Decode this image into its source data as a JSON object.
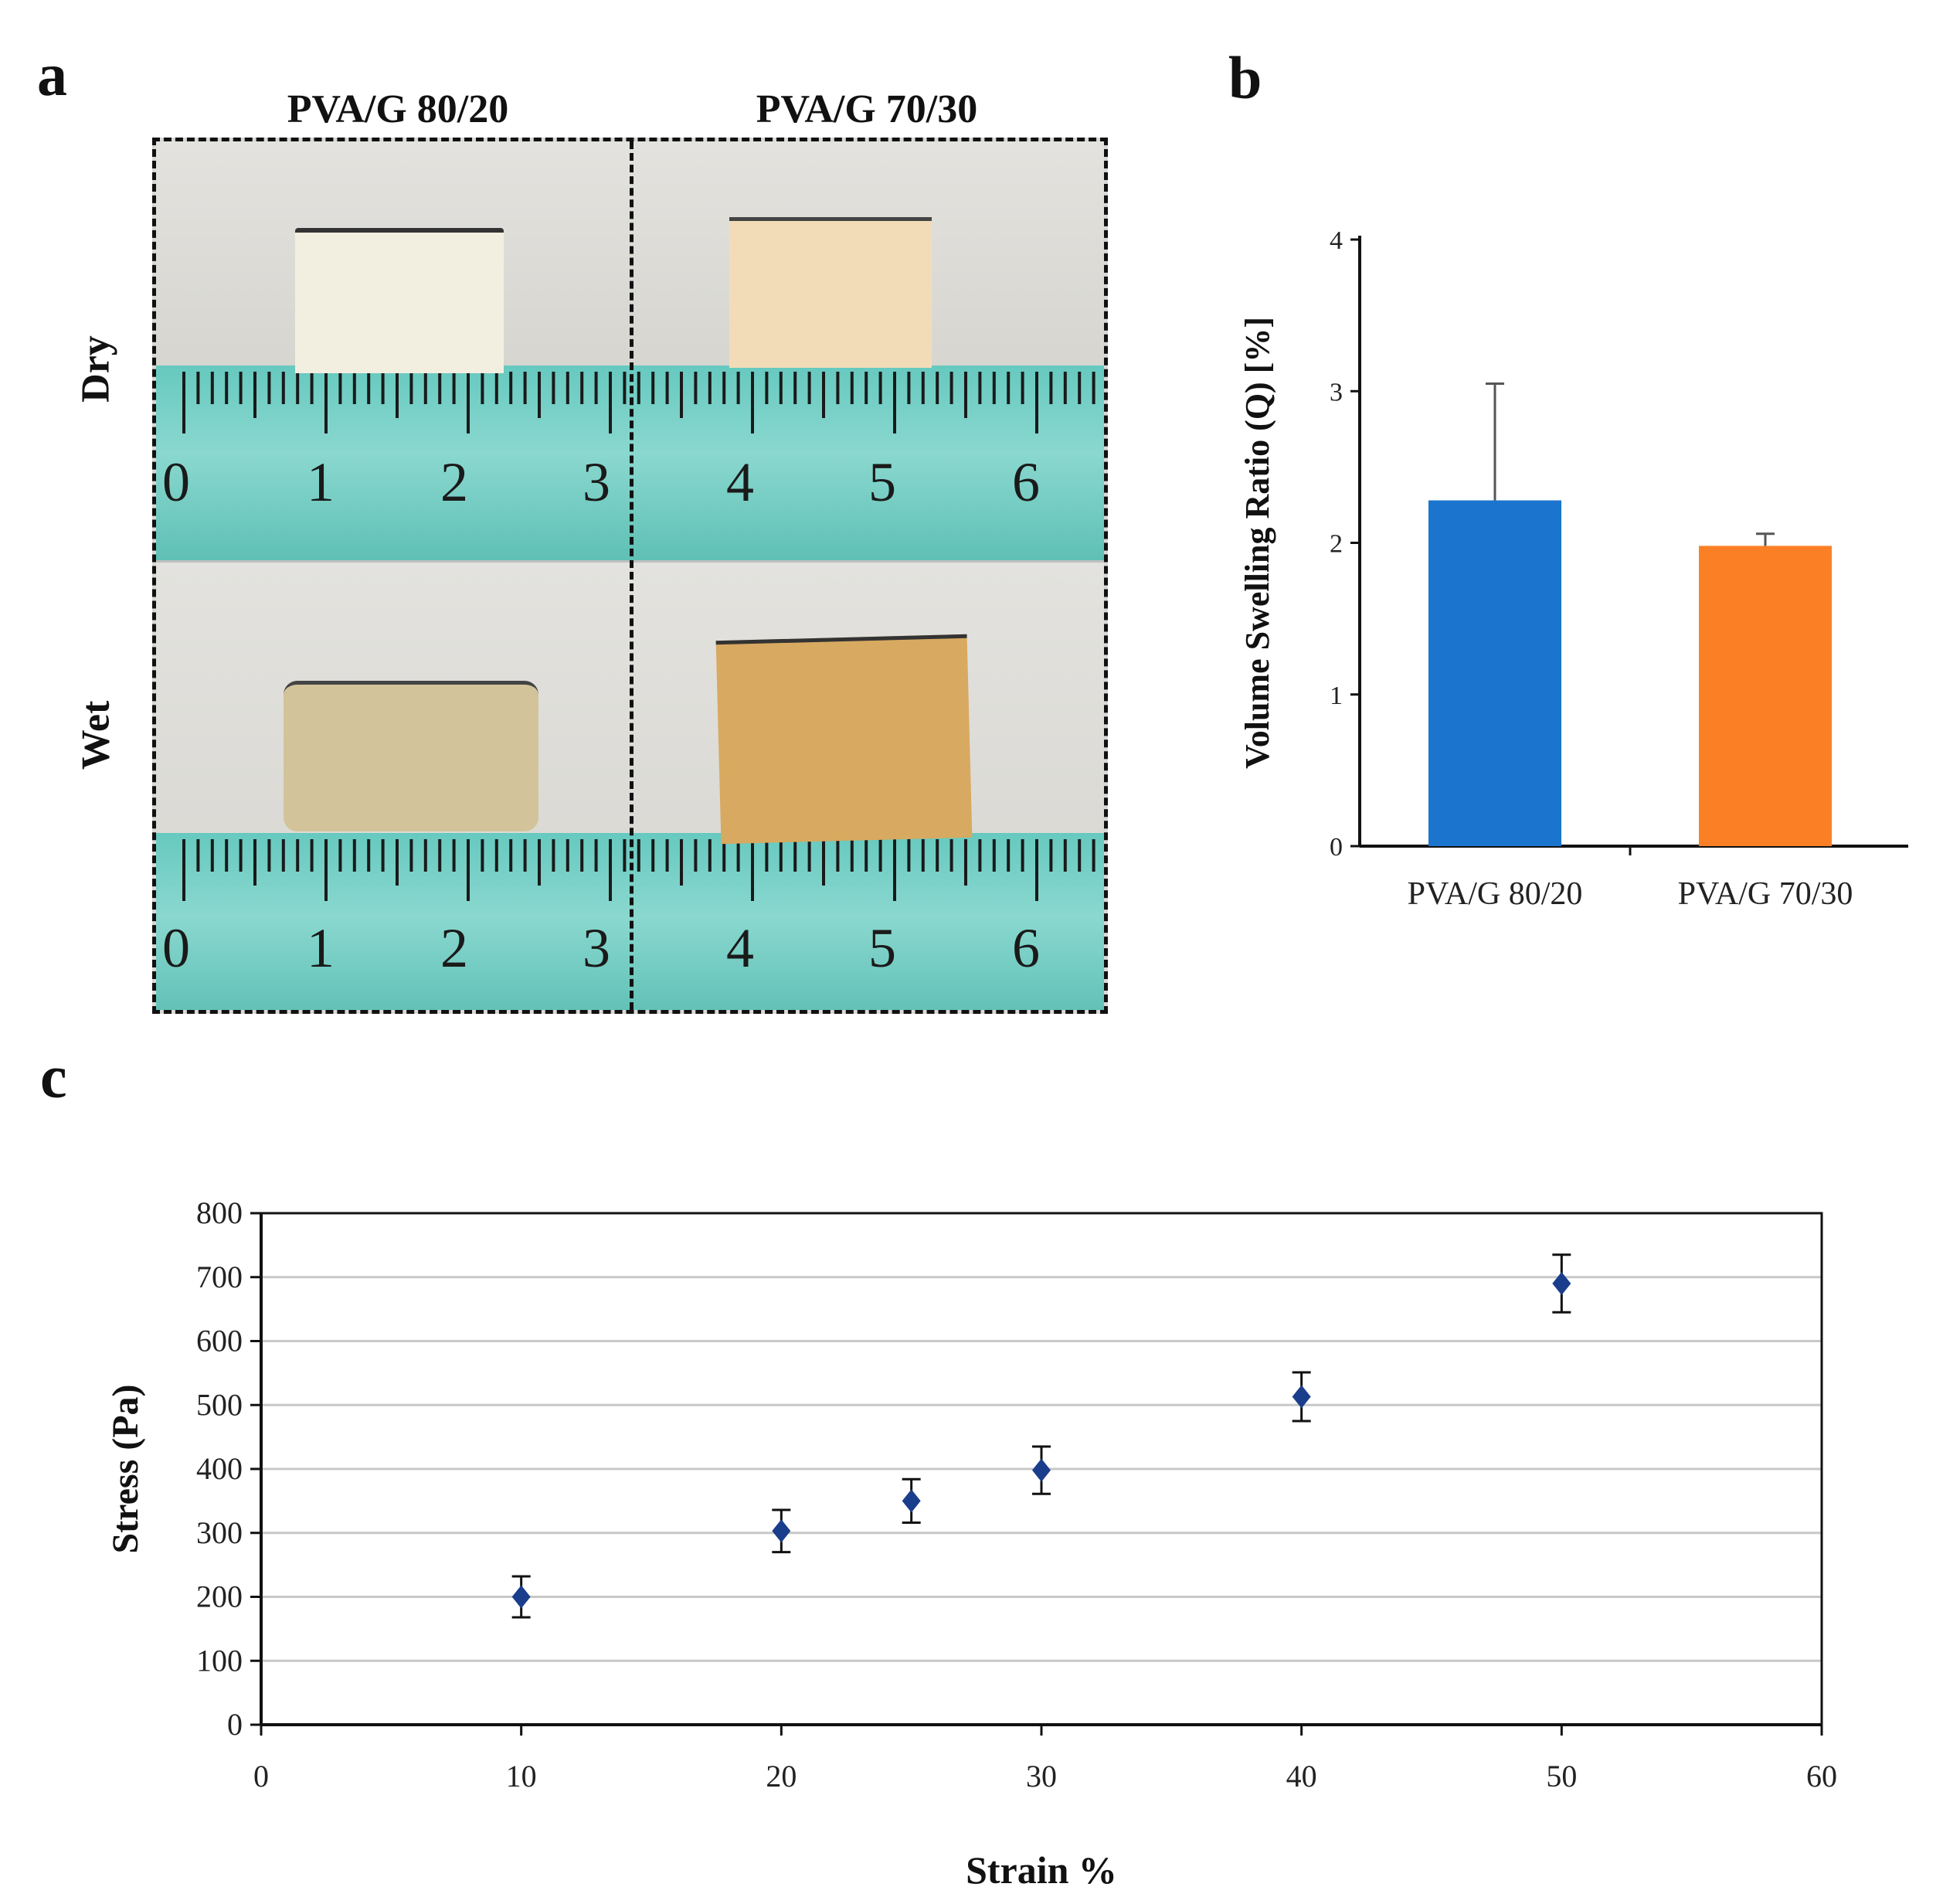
{
  "panels": {
    "a": "a",
    "b": "b",
    "c": "c"
  },
  "photo_panel": {
    "column_headers": [
      "PVA/G 80/20",
      "PVA/G 70/30"
    ],
    "row_headers": [
      "Dry",
      "Wet"
    ],
    "ruler_numbers_left": [
      "0",
      "1",
      "2",
      "3"
    ],
    "ruler_numbers_right": [
      "4",
      "5",
      "6"
    ]
  },
  "colors": {
    "bar_80_20": "#1b74cd",
    "bar_70_30": "#fb7f25",
    "marker": "#1a3e8c",
    "grid": "#c8c8c8"
  },
  "chart_data": [
    {
      "id": "b",
      "type": "bar",
      "categories": [
        "PVA/G 80/20",
        "PVA/G 70/30"
      ],
      "values": [
        2.28,
        1.98
      ],
      "error_plus": [
        0.77,
        0.08
      ],
      "ylabel": "Volume Swelling Ratio (Q) [%]",
      "xlabel": "",
      "ylim": [
        0,
        4
      ],
      "yticks": [
        0,
        1,
        2,
        3,
        4
      ],
      "grid": false
    },
    {
      "id": "c",
      "type": "scatter",
      "x": [
        10,
        20,
        25,
        30,
        40,
        50
      ],
      "y": [
        200,
        303,
        350,
        398,
        513,
        690
      ],
      "error": [
        32,
        33,
        34,
        37,
        38,
        45
      ],
      "xlabel": "Strain %",
      "ylabel": "Stress (Pa)",
      "xlim": [
        0,
        60
      ],
      "ylim": [
        0,
        800
      ],
      "xticks": [
        0,
        10,
        20,
        30,
        40,
        50,
        60
      ],
      "yticks": [
        0,
        100,
        200,
        300,
        400,
        500,
        600,
        700,
        800
      ],
      "grid": true,
      "marker": "diamond"
    }
  ]
}
